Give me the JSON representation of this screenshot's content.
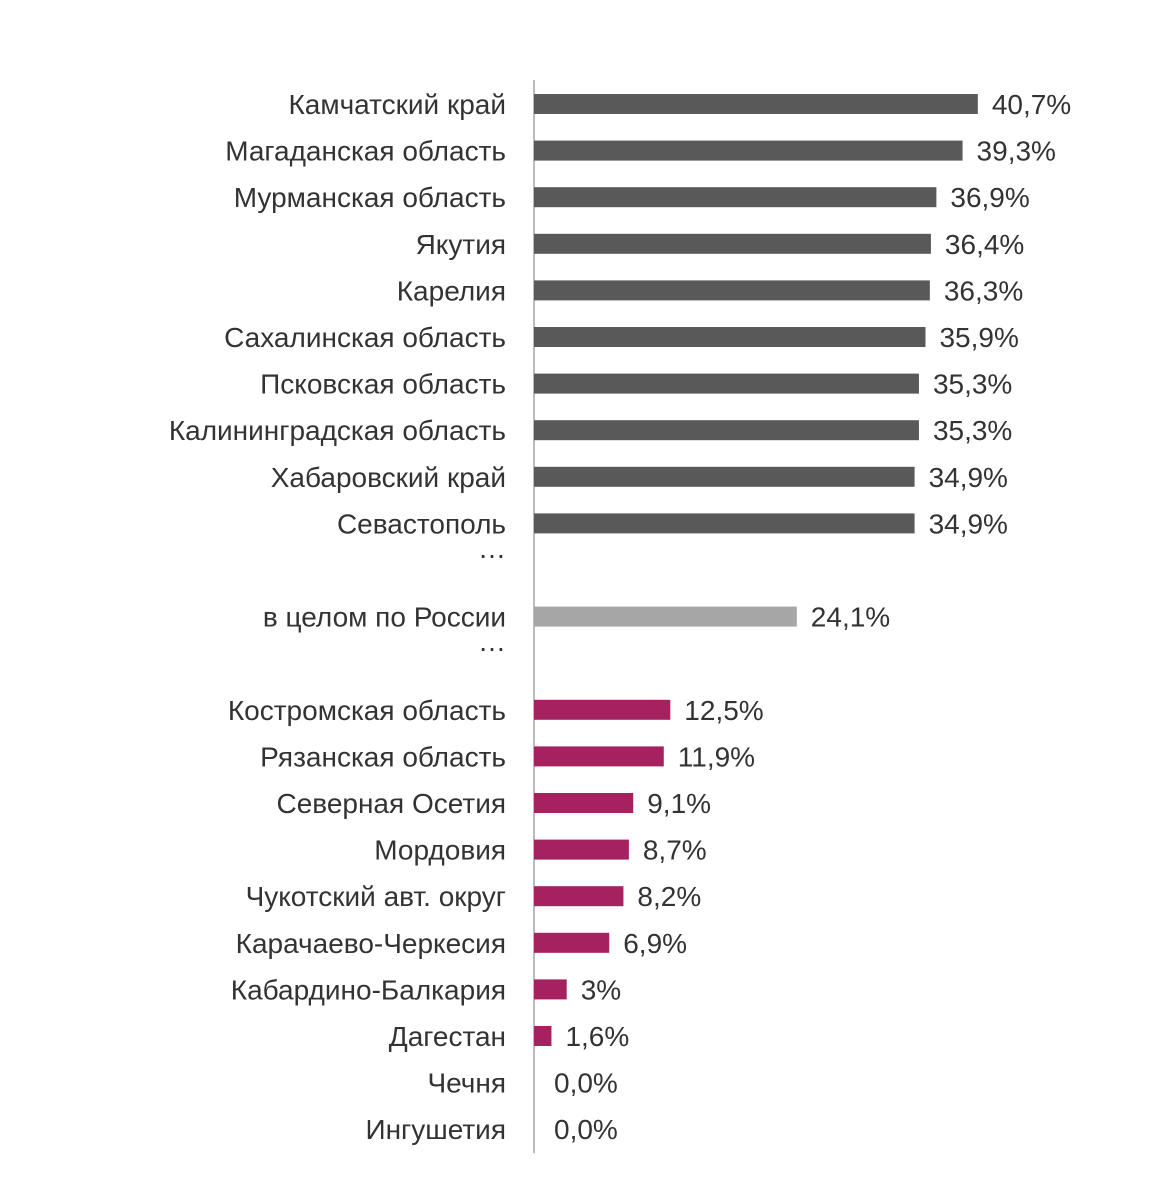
{
  "chart_data": {
    "type": "bar",
    "orientation": "horizontal",
    "title": "",
    "xlabel": "",
    "ylabel": "",
    "xlim": [
      0,
      42
    ],
    "grid": false,
    "legend": "none",
    "colors": {
      "top": "#595959",
      "russia": "#a6a6a6",
      "bottom": "#a5215f",
      "axis": "#a6a6a6",
      "text": "#333333"
    },
    "rows": [
      {
        "kind": "bar",
        "label": "Камчатский край",
        "value": 40.7,
        "value_label": "40,7%",
        "group": "top"
      },
      {
        "kind": "bar",
        "label": "Магаданская область",
        "value": 39.3,
        "value_label": "39,3%",
        "group": "top"
      },
      {
        "kind": "bar",
        "label": "Мурманская область",
        "value": 36.9,
        "value_label": "36,9%",
        "group": "top"
      },
      {
        "kind": "bar",
        "label": "Якутия",
        "value": 36.4,
        "value_label": "36,4%",
        "group": "top"
      },
      {
        "kind": "bar",
        "label": "Карелия",
        "value": 36.3,
        "value_label": "36,3%",
        "group": "top"
      },
      {
        "kind": "bar",
        "label": "Сахалинская область",
        "value": 35.9,
        "value_label": "35,9%",
        "group": "top"
      },
      {
        "kind": "bar",
        "label": "Псковская область",
        "value": 35.3,
        "value_label": "35,3%",
        "group": "top"
      },
      {
        "kind": "bar",
        "label": "Калининградская область",
        "value": 35.3,
        "value_label": "35,3%",
        "group": "top"
      },
      {
        "kind": "bar",
        "label": "Хабаровский край",
        "value": 34.9,
        "value_label": "34,9%",
        "group": "top"
      },
      {
        "kind": "bar",
        "label": "Севастополь",
        "value": 34.9,
        "value_label": "34,9%",
        "group": "top"
      },
      {
        "kind": "gap",
        "label": "…"
      },
      {
        "kind": "bar",
        "label": "в целом по России",
        "value": 24.1,
        "value_label": "24,1%",
        "group": "russia"
      },
      {
        "kind": "gap",
        "label": "…"
      },
      {
        "kind": "bar",
        "label": "Костромская область",
        "value": 12.5,
        "value_label": "12,5%",
        "group": "bottom"
      },
      {
        "kind": "bar",
        "label": "Рязанская область",
        "value": 11.9,
        "value_label": "11,9%",
        "group": "bottom"
      },
      {
        "kind": "bar",
        "label": "Северная Осетия",
        "value": 9.1,
        "value_label": "9,1%",
        "group": "bottom"
      },
      {
        "kind": "bar",
        "label": "Мордовия",
        "value": 8.7,
        "value_label": "8,7%",
        "group": "bottom"
      },
      {
        "kind": "bar",
        "label": "Чукотский авт. округ",
        "value": 8.2,
        "value_label": "8,2%",
        "group": "bottom"
      },
      {
        "kind": "bar",
        "label": "Карачаево-Черкесия",
        "value": 6.9,
        "value_label": "6,9%",
        "group": "bottom"
      },
      {
        "kind": "bar",
        "label": "Кабардино-Балкария",
        "value": 3,
        "value_label": "3%",
        "group": "bottom"
      },
      {
        "kind": "bar",
        "label": "Дагестан",
        "value": 1.6,
        "value_label": "1,6%",
        "group": "bottom"
      },
      {
        "kind": "bar",
        "label": "Чечня",
        "value": 0,
        "value_label": "0,0%",
        "group": "bottom"
      },
      {
        "kind": "bar",
        "label": "Ингушетия",
        "value": 0,
        "value_label": "0,0%",
        "group": "bottom"
      }
    ]
  }
}
